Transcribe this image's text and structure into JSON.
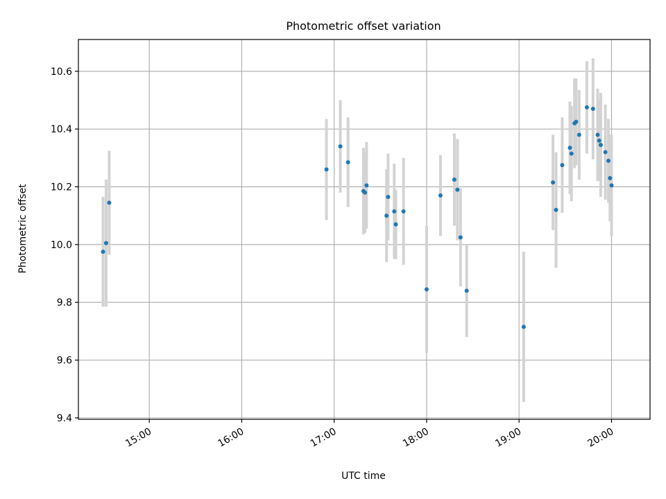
{
  "chart_data": {
    "type": "scatter",
    "title": "Photometric offset variation",
    "xlabel": "UTC time",
    "ylabel": "Photometric offset",
    "xlim": [
      "14:14",
      "20:25"
    ],
    "ylim": [
      9.395,
      10.71
    ],
    "x_ticks": [
      "15:00",
      "16:00",
      "17:00",
      "18:00",
      "19:00",
      "20:00"
    ],
    "y_ticks": [
      "9.4",
      "9.6",
      "9.8",
      "10.0",
      "10.2",
      "10.4",
      "10.6"
    ],
    "grid": true,
    "colors": {
      "point": "#1f77b4",
      "errorbar": "#d3d3d3",
      "grid": "#b0b0b0"
    },
    "series": [
      {
        "points": [
          {
            "x": "14:30",
            "y": 9.975,
            "err": 0.19
          },
          {
            "x": "14:32",
            "y": 10.005,
            "err": 0.22
          },
          {
            "x": "14:34",
            "y": 10.145,
            "err": 0.18
          },
          {
            "x": "16:55",
            "y": 10.26,
            "err": 0.175
          },
          {
            "x": "17:04",
            "y": 10.34,
            "err": 0.16
          },
          {
            "x": "17:09",
            "y": 10.285,
            "err": 0.155
          },
          {
            "x": "17:19",
            "y": 10.185,
            "err": 0.15
          },
          {
            "x": "17:20",
            "y": 10.18,
            "err": 0.14
          },
          {
            "x": "17:21",
            "y": 10.205,
            "err": 0.15
          },
          {
            "x": "17:34",
            "y": 10.1,
            "err": 0.16
          },
          {
            "x": "17:35",
            "y": 10.165,
            "err": 0.15
          },
          {
            "x": "17:39",
            "y": 10.115,
            "err": 0.165
          },
          {
            "x": "17:40",
            "y": 10.07,
            "err": 0.12
          },
          {
            "x": "17:45",
            "y": 10.115,
            "err": 0.185
          },
          {
            "x": "18:00",
            "y": 9.845,
            "err": 0.22
          },
          {
            "x": "18:09",
            "y": 10.17,
            "err": 0.14
          },
          {
            "x": "18:18",
            "y": 10.225,
            "err": 0.16
          },
          {
            "x": "18:20",
            "y": 10.19,
            "err": 0.175
          },
          {
            "x": "18:22",
            "y": 10.025,
            "err": 0.17
          },
          {
            "x": "18:26",
            "y": 9.84,
            "err": 0.16
          },
          {
            "x": "19:03",
            "y": 9.715,
            "err": 0.26
          },
          {
            "x": "19:22",
            "y": 10.215,
            "err": 0.165
          },
          {
            "x": "19:24",
            "y": 10.12,
            "err": 0.2
          },
          {
            "x": "19:28",
            "y": 10.275,
            "err": 0.165
          },
          {
            "x": "19:33",
            "y": 10.335,
            "err": 0.16
          },
          {
            "x": "19:34",
            "y": 10.315,
            "err": 0.165
          },
          {
            "x": "19:36",
            "y": 10.42,
            "err": 0.155
          },
          {
            "x": "19:37",
            "y": 10.425,
            "err": 0.15
          },
          {
            "x": "19:39",
            "y": 10.38,
            "err": 0.155
          },
          {
            "x": "19:44",
            "y": 10.475,
            "err": 0.16
          },
          {
            "x": "19:48",
            "y": 10.47,
            "err": 0.175
          },
          {
            "x": "19:51",
            "y": 10.38,
            "err": 0.16
          },
          {
            "x": "19:52",
            "y": 10.36,
            "err": 0.14
          },
          {
            "x": "19:53",
            "y": 10.345,
            "err": 0.18
          },
          {
            "x": "19:56",
            "y": 10.32,
            "err": 0.165
          },
          {
            "x": "19:58",
            "y": 10.29,
            "err": 0.145
          },
          {
            "x": "19:59",
            "y": 10.23,
            "err": 0.15
          },
          {
            "x": "20:00",
            "y": 10.205,
            "err": 0.175
          }
        ]
      }
    ]
  }
}
